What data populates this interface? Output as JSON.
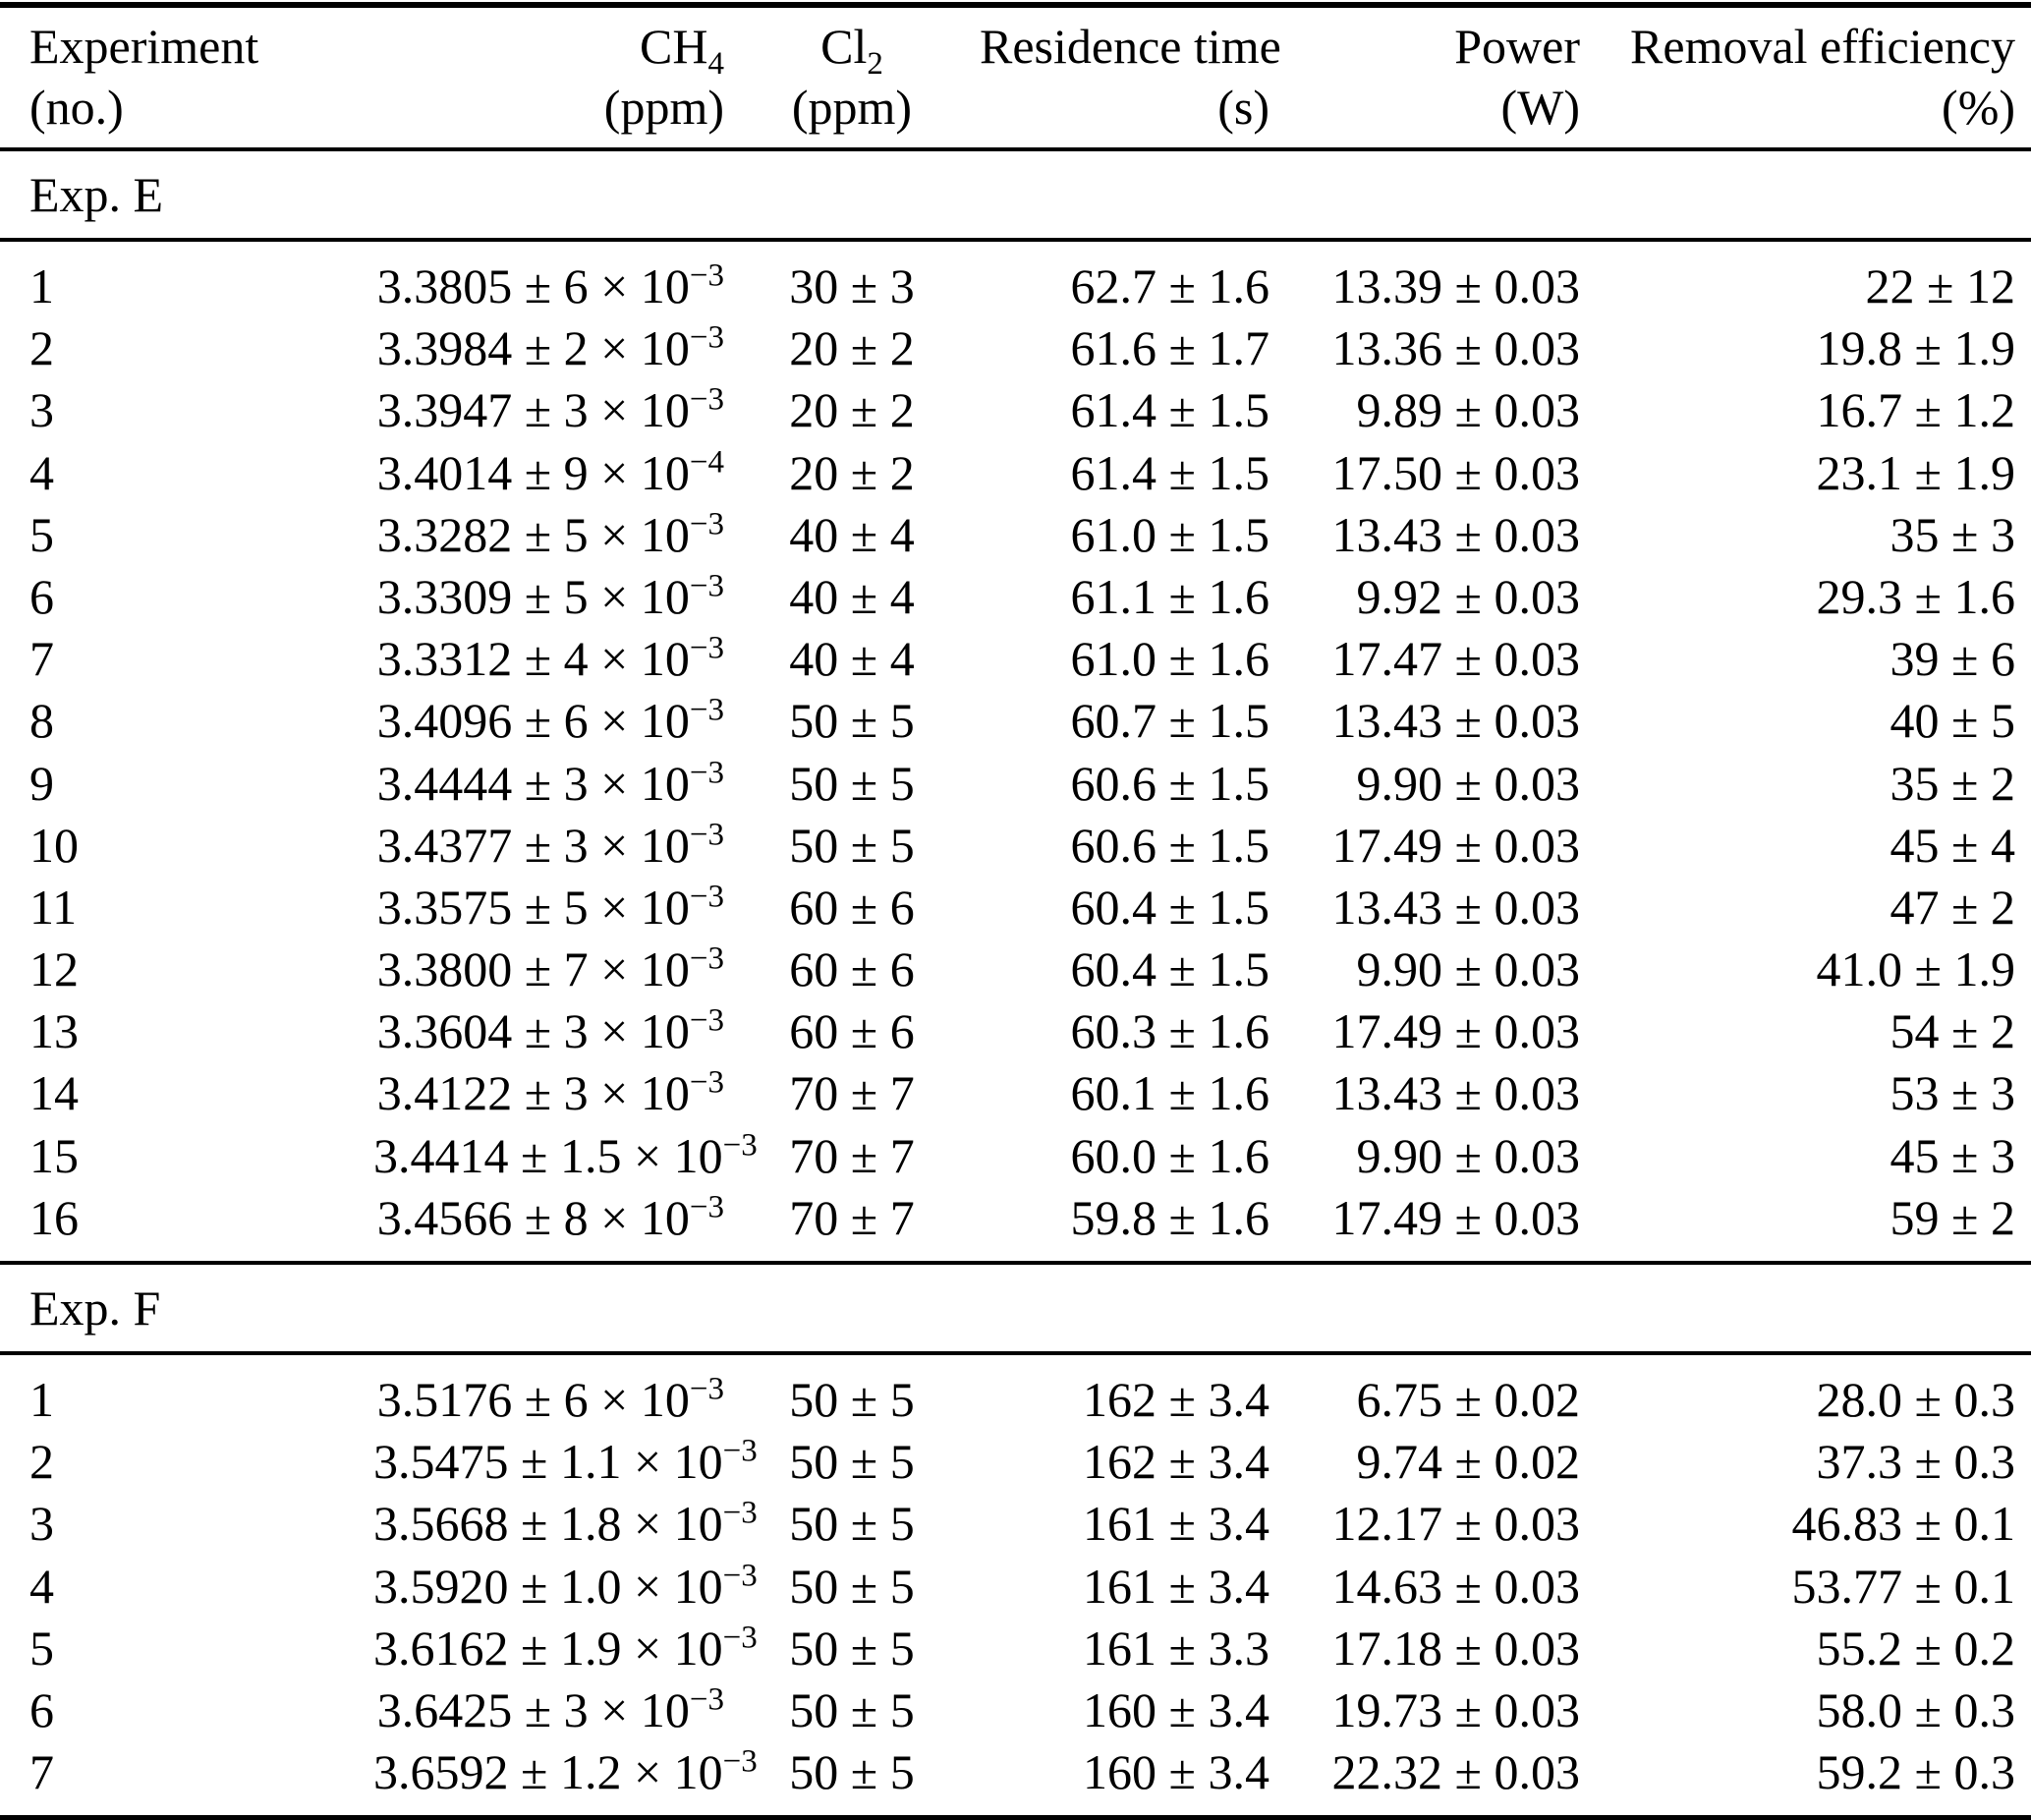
{
  "table": {
    "columns": [
      {
        "key": "experiment",
        "label": "Experiment",
        "unit": "(no.)"
      },
      {
        "key": "ch4",
        "label": "CH_{4}",
        "unit": "(ppm)"
      },
      {
        "key": "cl2",
        "label": "Cl_{2}",
        "unit": "(ppm)"
      },
      {
        "key": "residence-time",
        "label": "Residence time",
        "unit": "(s)"
      },
      {
        "key": "power",
        "label": "Power",
        "unit": "(W)"
      },
      {
        "key": "removal-efficiency",
        "label": "Removal efficiency",
        "unit": "(%)"
      }
    ],
    "sections": [
      {
        "label": "Exp. E",
        "rows": [
          [
            "1",
            "3.3805 ± 6 × 10^{−3}",
            "30 ± 3",
            "62.7 ± 1.6",
            "13.39 ± 0.03",
            "22 ± 12"
          ],
          [
            "2",
            "3.3984 ± 2 × 10^{−3}",
            "20 ± 2",
            "61.6 ± 1.7",
            "13.36 ± 0.03",
            "19.8 ± 1.9"
          ],
          [
            "3",
            "3.3947 ± 3 × 10^{−3}",
            "20 ± 2",
            "61.4 ± 1.5",
            "9.89 ± 0.03",
            "16.7 ± 1.2"
          ],
          [
            "4",
            "3.4014 ± 9 × 10^{−4}",
            "20 ± 2",
            "61.4 ± 1.5",
            "17.50 ± 0.03",
            "23.1 ± 1.9"
          ],
          [
            "5",
            "3.3282 ± 5 × 10^{−3}",
            "40 ± 4",
            "61.0 ± 1.5",
            "13.43 ± 0.03",
            "35 ± 3"
          ],
          [
            "6",
            "3.3309 ± 5 × 10^{−3}",
            "40 ± 4",
            "61.1 ± 1.6",
            "9.92 ± 0.03",
            "29.3 ± 1.6"
          ],
          [
            "7",
            "3.3312 ± 4 × 10^{−3}",
            "40 ± 4",
            "61.0 ± 1.6",
            "17.47 ± 0.03",
            "39 ± 6"
          ],
          [
            "8",
            "3.4096 ± 6 × 10^{−3}",
            "50 ± 5",
            "60.7 ± 1.5",
            "13.43 ± 0.03",
            "40 ± 5"
          ],
          [
            "9",
            "3.4444 ± 3 × 10^{−3}",
            "50 ± 5",
            "60.6 ± 1.5",
            "9.90 ± 0.03",
            "35 ± 2"
          ],
          [
            "10",
            "3.4377 ± 3 × 10^{−3}",
            "50 ± 5",
            "60.6 ± 1.5",
            "17.49 ± 0.03",
            "45 ± 4"
          ],
          [
            "11",
            "3.3575 ± 5 × 10^{−3}",
            "60 ± 6",
            "60.4 ± 1.5",
            "13.43 ± 0.03",
            "47 ± 2"
          ],
          [
            "12",
            "3.3800 ± 7 × 10^{−3}",
            "60 ± 6",
            "60.4 ± 1.5",
            "9.90 ± 0.03",
            "41.0 ± 1.9"
          ],
          [
            "13",
            "3.3604 ± 3 × 10^{−3}",
            "60 ± 6",
            "60.3 ± 1.6",
            "17.49 ± 0.03",
            "54 ± 2"
          ],
          [
            "14",
            "3.4122 ± 3 × 10^{−3}",
            "70 ± 7",
            "60.1 ± 1.6",
            "13.43 ± 0.03",
            "53 ± 3"
          ],
          [
            "15",
            "3.4414 ± 1.5 × 10^{−3}",
            "70 ± 7",
            "60.0 ± 1.6",
            "9.90 ± 0.03",
            "45 ± 3"
          ],
          [
            "16",
            "3.4566 ± 8 × 10^{−3}",
            "70 ± 7",
            "59.8 ± 1.6",
            "17.49 ± 0.03",
            "59 ± 2"
          ]
        ]
      },
      {
        "label": "Exp. F",
        "rows": [
          [
            "1",
            "3.5176 ± 6 × 10^{−3}",
            "50 ± 5",
            "162 ± 3.4",
            "6.75 ± 0.02",
            "28.0 ± 0.3"
          ],
          [
            "2",
            "3.5475 ± 1.1 × 10^{−3}",
            "50 ± 5",
            "162 ± 3.4",
            "9.74 ± 0.02",
            "37.3 ± 0.3"
          ],
          [
            "3",
            "3.5668 ± 1.8 × 10^{−3}",
            "50 ± 5",
            "161 ± 3.4",
            "12.17 ± 0.03",
            "46.83 ± 0.1"
          ],
          [
            "4",
            "3.5920 ± 1.0 × 10^{−3}",
            "50 ± 5",
            "161 ± 3.4",
            "14.63 ± 0.03",
            "53.77 ± 0.1"
          ],
          [
            "5",
            "3.6162 ± 1.9 × 10^{−3}",
            "50 ± 5",
            "161 ± 3.3",
            "17.18 ± 0.03",
            "55.2 ± 0.2"
          ],
          [
            "6",
            "3.6425 ± 3 × 10^{−3}",
            "50 ± 5",
            "160 ± 3.4",
            "19.73 ± 0.03",
            "58.0 ± 0.3"
          ],
          [
            "7",
            "3.6592 ± 1.2 × 10^{−3}",
            "50 ± 5",
            "160 ± 3.4",
            "22.32 ± 0.03",
            "59.2 ± 0.3"
          ]
        ]
      }
    ]
  }
}
